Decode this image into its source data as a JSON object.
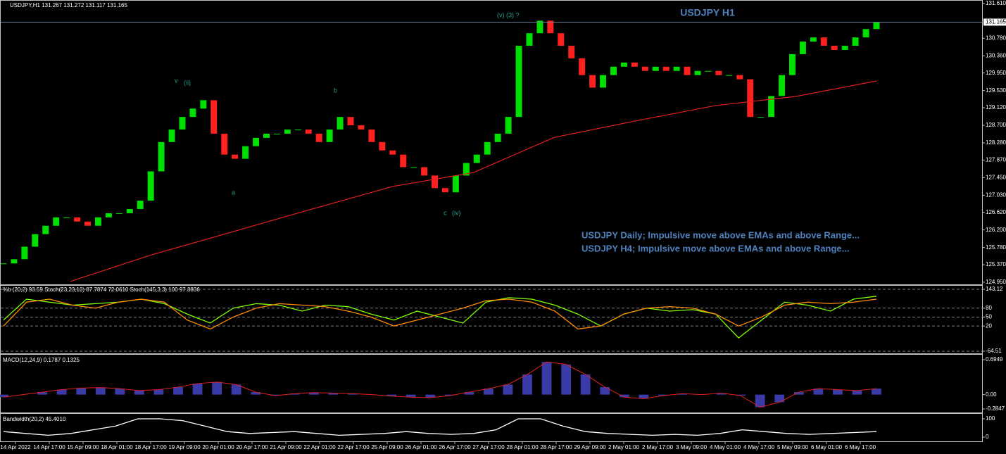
{
  "header": "USDJPY,H1  131.267 131.272 131.117 131.165",
  "time_axis": {
    "labels": [
      "14 Apr 2022",
      "14 Apr 17:00",
      "15 Apr 09:00",
      "18 Apr 01:00",
      "18 Apr 17:00",
      "19 Apr 09:00",
      "20 Apr 01:00",
      "20 Apr 17:00",
      "21 Apr 09:00",
      "22 Apr 01:00",
      "22 Apr 17:00",
      "25 Apr 09:00",
      "26 Apr 01:00",
      "26 Apr 17:00",
      "27 Apr 17:00",
      "28 Apr 01:00",
      "28 Apr 17:00",
      "29 Apr 09:00",
      "2 May 01:00",
      "2 May 17:00",
      "3 May 09:00",
      "4 May 01:00",
      "4 May 17:00",
      "5 May 09:00",
      "6 May 01:00",
      "6 May 17:00"
    ]
  },
  "chart_data": [
    {
      "type": "candlestick",
      "title": "USDJPY H1",
      "annotations": [
        "(v) (3) ?",
        "v",
        "(ii)",
        "b",
        "a",
        "c",
        "(iv)"
      ],
      "notes": [
        "USDJPY Daily; Impulsive move above EMAs and above Range...",
        "USDJPY H4; Impulsive move above EMAs and above Range..."
      ],
      "color_up": "#00e000",
      "color_down": "#ff2020",
      "values": [
        125.4,
        125.5,
        125.8,
        126.1,
        126.3,
        126.5,
        126.5,
        126.4,
        126.3,
        126.5,
        126.6,
        126.6,
        126.7,
        126.9,
        127.6,
        128.3,
        128.6,
        128.9,
        129.1,
        129.3,
        128.5,
        128.0,
        127.9,
        128.2,
        128.4,
        128.5,
        128.5,
        128.6,
        128.6,
        128.5,
        128.3,
        128.6,
        128.9,
        128.7,
        128.6,
        128.3,
        128.1,
        128.0,
        127.7,
        127.7,
        127.5,
        127.2,
        127.1,
        127.5,
        127.8,
        128.0,
        128.3,
        128.5,
        128.9,
        130.6,
        130.9,
        131.2,
        130.9,
        130.6,
        130.3,
        129.9,
        129.6,
        129.9,
        130.1,
        130.2,
        130.1,
        130.0,
        130.1,
        130.0,
        130.1,
        129.9,
        130.0,
        130.0,
        129.9,
        129.9,
        129.8,
        128.9,
        128.9,
        129.4,
        129.9,
        130.4,
        130.7,
        130.8,
        130.6,
        130.5,
        130.6,
        130.8,
        131.0,
        131.165
      ],
      "ema": {
        "color": "#e0201f",
        "values": [
          124.97,
          125.6,
          126.15,
          126.7,
          127.24,
          127.57,
          128.41,
          128.8,
          129.17,
          129.39,
          129.76
        ]
      },
      "last_price": 131.165,
      "ylim": [
        124.95,
        131.61
      ],
      "yticks": [
        {
          "value": 131.61,
          "label": "131.610"
        },
        {
          "value": 130.78,
          "label": "130.780"
        },
        {
          "value": 130.36,
          "label": "130.360"
        },
        {
          "value": 129.95,
          "label": "129.950"
        },
        {
          "value": 129.53,
          "label": "129.530"
        },
        {
          "value": 129.12,
          "label": "129.120"
        },
        {
          "value": 128.7,
          "label": "128.700"
        },
        {
          "value": 128.28,
          "label": "128.280"
        },
        {
          "value": 127.87,
          "label": "127.870"
        },
        {
          "value": 127.45,
          "label": "127.450"
        },
        {
          "value": 127.03,
          "label": "127.030"
        },
        {
          "value": 126.62,
          "label": "126.620"
        },
        {
          "value": 126.2,
          "label": "126.200"
        },
        {
          "value": 125.78,
          "label": "125.780"
        },
        {
          "value": 125.37,
          "label": "125.370"
        },
        {
          "value": 124.95,
          "label": "124.950"
        }
      ]
    },
    {
      "type": "line",
      "title": "%b (20,2) 93.59  Stoch(23,23,10) 87.7874 72.0610  Stoch(145,3,3) 100 97.8836",
      "ylim": [
        -64.51,
        143.12
      ],
      "yticks": [
        143.12,
        80,
        50,
        20,
        -64.51
      ],
      "series": [
        {
          "color": "#7fff00",
          "values": [
            40,
            110,
            100,
            90,
            95,
            100,
            110,
            95,
            60,
            30,
            80,
            95,
            90,
            70,
            90,
            85,
            60,
            40,
            70,
            50,
            30,
            100,
            115,
            110,
            90,
            60,
            20,
            60,
            80,
            70,
            75,
            60,
            -20,
            40,
            100,
            90,
            70,
            110,
            120
          ]
        },
        {
          "color": "#ff8c00",
          "values": [
            20,
            100,
            110,
            90,
            80,
            100,
            110,
            100,
            40,
            10,
            50,
            80,
            95,
            90,
            85,
            70,
            50,
            20,
            40,
            60,
            80,
            105,
            110,
            100,
            70,
            10,
            20,
            60,
            80,
            85,
            80,
            60,
            20,
            50,
            90,
            100,
            95,
            100,
            110
          ]
        }
      ]
    },
    {
      "type": "bar",
      "title": "MACD(12,24,9) 0.1787 0.1325",
      "color": "#3a3aa8",
      "line_color": "#e0201f",
      "ylim": [
        -0.2847,
        0.6949
      ],
      "yticks": [
        0.6949,
        {
          "value": 0,
          "label": "0.00"
        },
        -0.2847
      ],
      "values": [
        -0.05,
        0.0,
        0.05,
        0.1,
        0.13,
        0.14,
        0.12,
        0.08,
        0.1,
        0.15,
        0.22,
        0.25,
        0.2,
        0.05,
        -0.02,
        0.02,
        0.04,
        0.03,
        0.02,
        0.0,
        -0.03,
        -0.05,
        -0.06,
        -0.02,
        0.05,
        0.12,
        0.2,
        0.4,
        0.65,
        0.6,
        0.4,
        0.15,
        -0.05,
        -0.08,
        -0.02,
        0.02,
        0.0,
        0.03,
        -0.02,
        -0.25,
        -0.15,
        0.05,
        0.12,
        0.1,
        0.08,
        0.12
      ]
    },
    {
      "type": "line",
      "title": "Bandwidth(20,2) 45.4010",
      "ylim": [
        0,
        100
      ],
      "yticks": [
        100,
        0
      ],
      "series": [
        {
          "color": "#ffffff",
          "values": [
            30,
            20,
            10,
            20,
            40,
            60,
            100,
            100,
            90,
            60,
            30,
            20,
            25,
            30,
            20,
            10,
            15,
            20,
            30,
            20,
            15,
            20,
            40,
            100,
            100,
            60,
            30,
            20,
            15,
            10,
            15,
            10,
            20,
            40,
            30,
            20,
            15,
            20,
            25,
            30
          ]
        }
      ]
    }
  ]
}
